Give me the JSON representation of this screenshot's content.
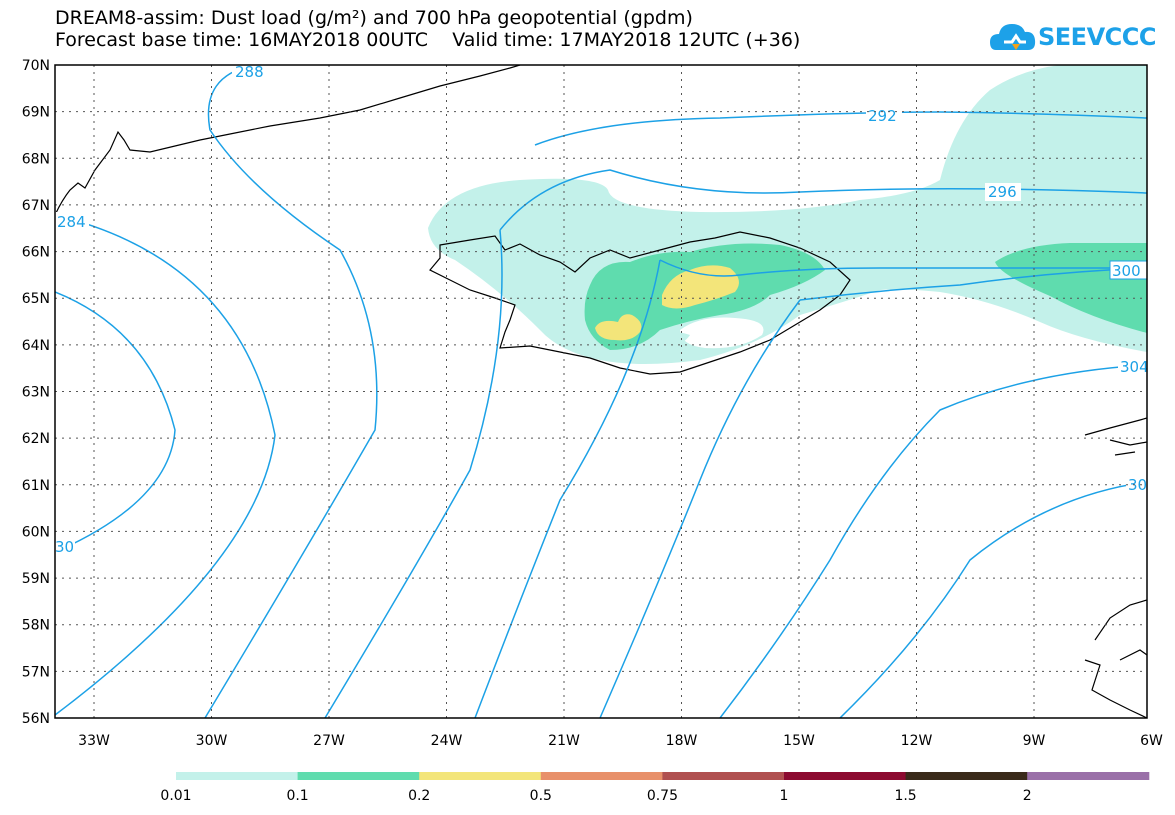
{
  "header": {
    "title_line1": "DREAM8-assim: Dust load (g/m²) and 700 hPa geopotential (gpdm)",
    "title_line2": "Forecast base time: 16MAY2018 00UTC    Valid time: 17MAY2018 12UTC (+36)",
    "logo_text": "SEEVCCC"
  },
  "map": {
    "lat_labels": [
      "70N",
      "69N",
      "68N",
      "67N",
      "66N",
      "65N",
      "64N",
      "63N",
      "62N",
      "61N",
      "60N",
      "59N",
      "58N",
      "57N",
      "56N"
    ],
    "lon_labels": [
      "33W",
      "30W",
      "27W",
      "24W",
      "21W",
      "18W",
      "15W",
      "12W",
      "9W",
      "6W"
    ],
    "contour_labels": [
      "288",
      "292",
      "296",
      "300",
      "304",
      "30",
      "284",
      "30"
    ],
    "colors": {
      "contour": "#1ca1e6",
      "coast": "#000000",
      "grid": "#555555"
    }
  },
  "legend": {
    "labels": [
      "0.01",
      "0.1",
      "0.2",
      "0.5",
      "0.75",
      "1",
      "1.5",
      "2"
    ],
    "colors": [
      "#c3f1ea",
      "#5fdcae",
      "#f3e57a",
      "#e8906a",
      "#b05050",
      "#8c0a30",
      "#3a2a1a",
      "#9a70a8"
    ]
  }
}
